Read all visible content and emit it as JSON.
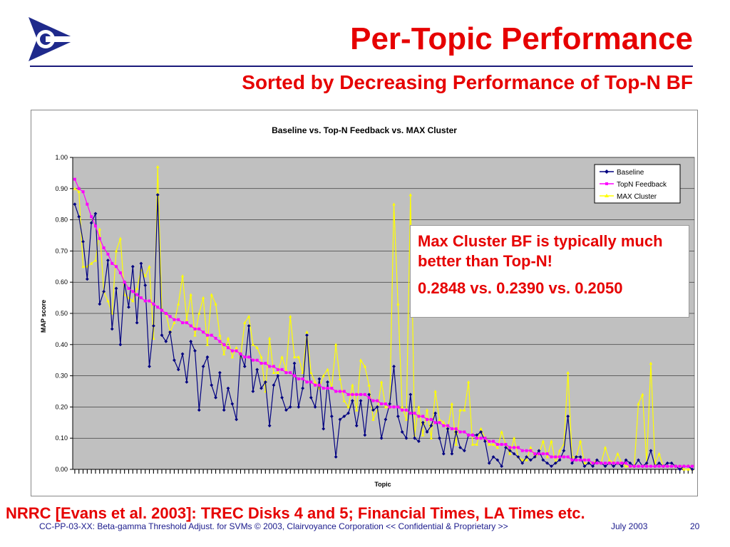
{
  "slide": {
    "title": "Per-Topic Performance",
    "subtitle": "Sorted by Decreasing Performance of Top-N BF",
    "callout": {
      "line1": "Max Cluster BF is typically much better than Top-N!",
      "line2": "0.2848 vs. 0.2390 vs. 0.2050"
    },
    "citation": "NRRC [Evans et al. 2003]: TREC Disks 4 and 5; Financial Times, LA Times etc.",
    "footer": {
      "left": "CC-PP-03-XX: Beta-gamma Threshold Adjust. for SVMs © 2003, Clairvoyance Corporation  << Confidential & Proprietary >>",
      "date": "July 2003",
      "page": "20"
    }
  },
  "colors": {
    "red": "#e60000",
    "navy": "#1a1a7a",
    "plot_bg": "#c0c0c0",
    "baseline": "#000080",
    "topn": "#ff00ff",
    "maxcluster": "#ffff00"
  },
  "chart_data": {
    "type": "line",
    "title": "Baseline vs. Top-N Feedback vs. MAX Cluster",
    "xlabel": "Topic",
    "ylabel": "MAP score",
    "ylim": [
      0,
      1
    ],
    "yticks": [
      "0.00",
      "0.10",
      "0.20",
      "0.30",
      "0.40",
      "0.50",
      "0.60",
      "0.70",
      "0.80",
      "0.90",
      "1.00"
    ],
    "grid": true,
    "legend": "top-right",
    "x_count": 150,
    "series": [
      {
        "name": "Baseline",
        "color": "#000080",
        "marker": "diamond",
        "values": [
          0.85,
          0.81,
          0.73,
          0.61,
          0.79,
          0.82,
          0.53,
          0.57,
          0.67,
          0.45,
          0.58,
          0.4,
          0.6,
          0.52,
          0.65,
          0.47,
          0.66,
          0.59,
          0.33,
          0.46,
          0.88,
          0.43,
          0.41,
          0.44,
          0.35,
          0.32,
          0.37,
          0.28,
          0.41,
          0.38,
          0.19,
          0.33,
          0.36,
          0.27,
          0.23,
          0.31,
          0.19,
          0.26,
          0.21,
          0.16,
          0.37,
          0.33,
          0.46,
          0.25,
          0.32,
          0.26,
          0.28,
          0.14,
          0.27,
          0.3,
          0.23,
          0.19,
          0.2,
          0.34,
          0.2,
          0.26,
          0.43,
          0.23,
          0.2,
          0.29,
          0.13,
          0.28,
          0.17,
          0.04,
          0.16,
          0.17,
          0.18,
          0.22,
          0.14,
          0.22,
          0.11,
          0.24,
          0.19,
          0.2,
          0.1,
          0.16,
          0.21,
          0.33,
          0.17,
          0.12,
          0.1,
          0.24,
          0.1,
          0.09,
          0.15,
          0.12,
          0.14,
          0.18,
          0.1,
          0.05,
          0.13,
          0.05,
          0.12,
          0.07,
          0.06,
          0.11,
          0.11,
          0.11,
          0.12,
          0.09,
          0.02,
          0.04,
          0.03,
          0.01,
          0.07,
          0.06,
          0.05,
          0.04,
          0.02,
          0.04,
          0.03,
          0.04,
          0.06,
          0.03,
          0.02,
          0.01,
          0.02,
          0.03,
          0.06,
          0.17,
          0.02,
          0.04,
          0.04,
          0.01,
          0.02,
          0.01,
          0.03,
          0.02,
          0.01,
          0.02,
          0.01,
          0.02,
          0.01,
          0.03,
          0.02,
          0.01,
          0.03,
          0.01,
          0.02,
          0.06,
          0.01,
          0.02,
          0.01,
          0.02,
          0.02,
          0.01,
          0.0,
          0.01,
          0.01,
          0.0
        ]
      },
      {
        "name": "TopN Feedback",
        "color": "#ff00ff",
        "marker": "square",
        "values": [
          0.93,
          0.9,
          0.89,
          0.85,
          0.81,
          0.78,
          0.74,
          0.71,
          0.69,
          0.66,
          0.65,
          0.63,
          0.6,
          0.58,
          0.57,
          0.56,
          0.55,
          0.54,
          0.54,
          0.53,
          0.52,
          0.51,
          0.5,
          0.49,
          0.48,
          0.48,
          0.47,
          0.47,
          0.46,
          0.45,
          0.45,
          0.44,
          0.43,
          0.43,
          0.42,
          0.41,
          0.4,
          0.39,
          0.38,
          0.38,
          0.37,
          0.36,
          0.36,
          0.35,
          0.35,
          0.34,
          0.34,
          0.33,
          0.33,
          0.32,
          0.32,
          0.31,
          0.31,
          0.3,
          0.29,
          0.29,
          0.28,
          0.28,
          0.27,
          0.27,
          0.26,
          0.26,
          0.26,
          0.25,
          0.25,
          0.25,
          0.24,
          0.24,
          0.24,
          0.24,
          0.24,
          0.23,
          0.22,
          0.22,
          0.21,
          0.21,
          0.2,
          0.2,
          0.2,
          0.19,
          0.19,
          0.18,
          0.18,
          0.17,
          0.17,
          0.16,
          0.16,
          0.15,
          0.15,
          0.14,
          0.14,
          0.13,
          0.13,
          0.12,
          0.12,
          0.11,
          0.11,
          0.1,
          0.1,
          0.1,
          0.09,
          0.09,
          0.08,
          0.08,
          0.08,
          0.07,
          0.07,
          0.07,
          0.06,
          0.06,
          0.06,
          0.05,
          0.05,
          0.05,
          0.05,
          0.04,
          0.04,
          0.04,
          0.04,
          0.04,
          0.03,
          0.03,
          0.03,
          0.03,
          0.03,
          0.02,
          0.02,
          0.02,
          0.02,
          0.02,
          0.02,
          0.02,
          0.02,
          0.02,
          0.01,
          0.01,
          0.01,
          0.01,
          0.01,
          0.01,
          0.01,
          0.01,
          0.01,
          0.01,
          0.01,
          0.01,
          0.01,
          0.01,
          0.01,
          0.01
        ]
      },
      {
        "name": "MAX Cluster",
        "color": "#ffff00",
        "marker": "triangle",
        "values": [
          0.9,
          0.89,
          0.65,
          0.65,
          0.66,
          0.67,
          0.77,
          0.57,
          0.54,
          0.5,
          0.7,
          0.74,
          0.56,
          0.55,
          0.54,
          0.58,
          0.64,
          0.62,
          0.65,
          0.42,
          0.97,
          0.51,
          0.5,
          0.44,
          0.47,
          0.53,
          0.62,
          0.48,
          0.56,
          0.43,
          0.5,
          0.55,
          0.4,
          0.56,
          0.53,
          0.43,
          0.37,
          0.42,
          0.36,
          0.39,
          0.36,
          0.47,
          0.49,
          0.4,
          0.39,
          0.36,
          0.25,
          0.42,
          0.31,
          0.31,
          0.36,
          0.32,
          0.49,
          0.36,
          0.36,
          0.31,
          0.44,
          0.31,
          0.28,
          0.26,
          0.3,
          0.32,
          0.26,
          0.4,
          0.29,
          0.22,
          0.2,
          0.27,
          0.19,
          0.35,
          0.33,
          0.27,
          0.16,
          0.19,
          0.28,
          0.2,
          0.2,
          0.85,
          0.53,
          0.2,
          0.16,
          0.88,
          0.11,
          0.2,
          0.11,
          0.19,
          0.1,
          0.25,
          0.16,
          0.15,
          0.13,
          0.21,
          0.08,
          0.19,
          0.19,
          0.28,
          0.08,
          0.08,
          0.13,
          0.1,
          0.08,
          0.08,
          0.07,
          0.12,
          0.08,
          0.05,
          0.1,
          0.04,
          0.03,
          0.03,
          0.07,
          0.04,
          0.05,
          0.09,
          0.04,
          0.09,
          0.02,
          0.06,
          0.08,
          0.31,
          0.04,
          0.04,
          0.09,
          0.02,
          0.02,
          0.02,
          0.03,
          0.02,
          0.07,
          0.03,
          0.02,
          0.05,
          0.02,
          0.01,
          0.01,
          0.01,
          0.21,
          0.24,
          0.02,
          0.34,
          0.02,
          0.05,
          0.01,
          0.01,
          0.01,
          0.01,
          0.01,
          0.0,
          0.0,
          0.0
        ]
      }
    ]
  }
}
